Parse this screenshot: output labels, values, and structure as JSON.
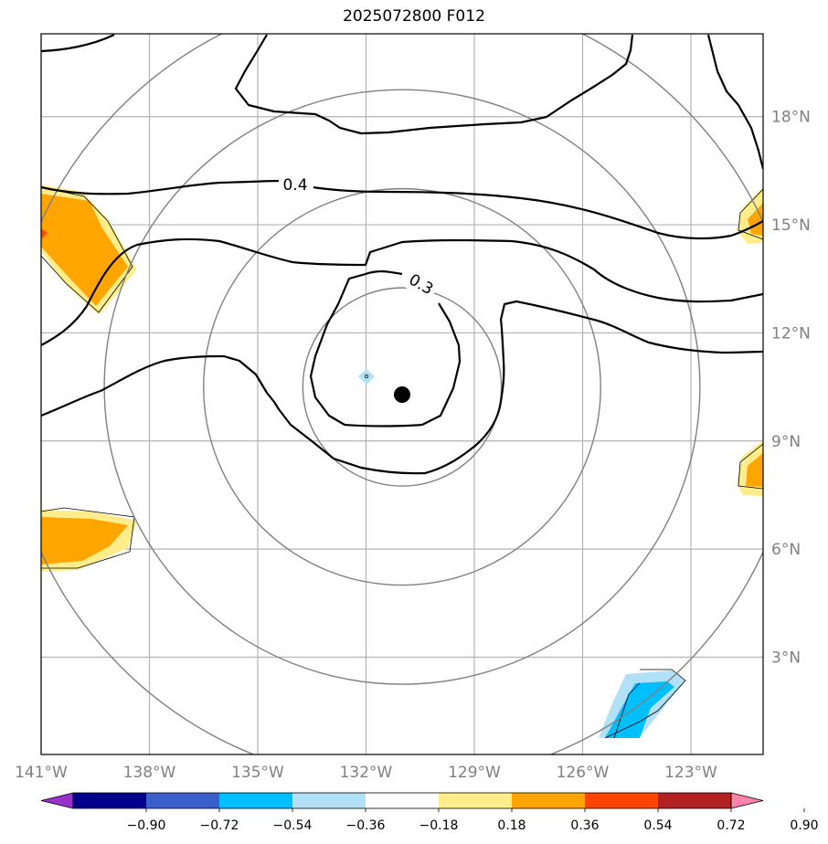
{
  "title": "2025072800 F012",
  "chart_data": {
    "type": "contour_map",
    "lon_range": [
      -141,
      -121
    ],
    "lat_range": [
      0.3,
      20.3
    ],
    "x_ticks": [
      {
        "v": -141,
        "label": "141°W"
      },
      {
        "v": -138,
        "label": "138°W"
      },
      {
        "v": -135,
        "label": "135°W"
      },
      {
        "v": -132,
        "label": "132°W"
      },
      {
        "v": -129,
        "label": "129°W"
      },
      {
        "v": -126,
        "label": "126°W"
      },
      {
        "v": -123,
        "label": "123°W"
      }
    ],
    "y_ticks": [
      {
        "v": 3,
        "label": "3°N"
      },
      {
        "v": 6,
        "label": "6°N"
      },
      {
        "v": 9,
        "label": "9°N"
      },
      {
        "v": 12,
        "label": "12°N"
      },
      {
        "v": 15,
        "label": "15°N"
      },
      {
        "v": 18,
        "label": "18°N"
      }
    ],
    "grid": true,
    "center": {
      "lon": -131,
      "lat": 10.5
    },
    "range_rings_deg": [
      2.75,
      5.5,
      8.25,
      11.0
    ],
    "contour_labels": [
      {
        "text": "0.4",
        "lon": -134.1,
        "lat": 16.0
      },
      {
        "text": "0.3",
        "lon": -130.5,
        "lat": 13.4
      }
    ],
    "colorbar": {
      "levels": [
        -0.9,
        -0.72,
        -0.54,
        -0.36,
        -0.18,
        0.18,
        0.36,
        0.54,
        0.72,
        0.9
      ],
      "tick_labels": [
        "−0.90",
        "−0.72",
        "−0.54",
        "−0.36",
        "−0.18",
        "0.18",
        "0.36",
        "0.54",
        "0.72",
        "0.90"
      ],
      "colors": [
        "#9932cc",
        "#00008b",
        "#3a5fcd",
        "#00bfff",
        "#b2e0f7",
        "#ffffff",
        "#ffec8b",
        "#ffa500",
        "#ff4500",
        "#b22222",
        "#ff82ab"
      ],
      "extend": "both"
    }
  }
}
